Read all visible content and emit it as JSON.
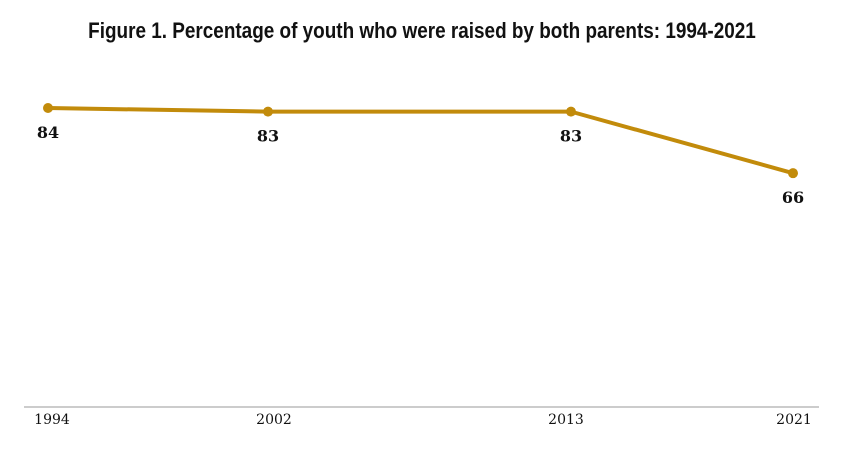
{
  "title": "Figure 1. Percentage of youth who were raised by both parents: 1994-2021",
  "chart_data": {
    "type": "line",
    "title": "Figure 1. Percentage of youth who were raised by both parents: 1994-2021",
    "x": [
      1994,
      2002,
      2013,
      2021
    ],
    "categories": [
      "1994",
      "2002",
      "2013",
      "2021"
    ],
    "series": [
      {
        "values": [
          84,
          83,
          83,
          66
        ],
        "labels": [
          "84",
          "83",
          "83",
          "66"
        ],
        "color": "#C28B0B"
      }
    ],
    "ylim": [
      0,
      100
    ],
    "grid": false,
    "legend": "none",
    "axis_color": "#999999"
  }
}
